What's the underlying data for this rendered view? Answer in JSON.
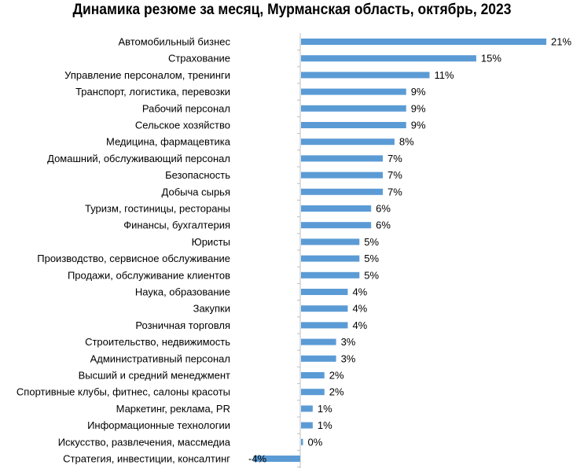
{
  "chart_data": {
    "type": "bar",
    "orientation": "horizontal",
    "title": "Динамика резюме за месяц, Мурманская область, октябрь, 2023",
    "xlabel": "",
    "ylabel": "",
    "value_suffix": "%",
    "grid": false,
    "legend": "none",
    "bar_color": "#5b9bd5",
    "axis_color": "#bfbfbf",
    "xlim": [
      -4,
      21
    ],
    "categories": [
      "Автомобильный бизнес",
      "Страхование",
      "Управление персоналом, тренинги",
      "Транспорт, логистика, перевозки",
      "Рабочий персонал",
      "Сельское хозяйство",
      "Медицина, фармацевтика",
      "Домашний, обслуживающий персонал",
      "Безопасность",
      "Добыча сырья",
      "Туризм, гостиницы, рестораны",
      "Финансы, бухгалтерия",
      "Юристы",
      "Производство, сервисное обслуживание",
      "Продажи, обслуживание клиентов",
      "Наука, образование",
      "Закупки",
      "Розничная торговля",
      "Строительство, недвижимость",
      "Административный персонал",
      "Высший и средний менеджмент",
      "Спортивные клубы, фитнес, салоны красоты",
      "Маркетинг, реклама, PR",
      "Информационные технологии",
      "Искусство, развлечения, массмедиа",
      "Стратегия, инвестиции, консалтинг"
    ],
    "values": [
      21,
      15,
      11,
      9,
      9,
      9,
      8,
      7,
      7,
      7,
      6,
      6,
      5,
      5,
      5,
      4,
      4,
      4,
      3,
      3,
      2,
      2,
      1,
      1,
      0,
      -4
    ],
    "value_labels": [
      "21%",
      "15%",
      "11%",
      "9%",
      "9%",
      "9%",
      "8%",
      "7%",
      "7%",
      "7%",
      "6%",
      "6%",
      "5%",
      "5%",
      "5%",
      "4%",
      "4%",
      "4%",
      "3%",
      "3%",
      "2%",
      "2%",
      "1%",
      "1%",
      "0%",
      "-4%"
    ]
  }
}
